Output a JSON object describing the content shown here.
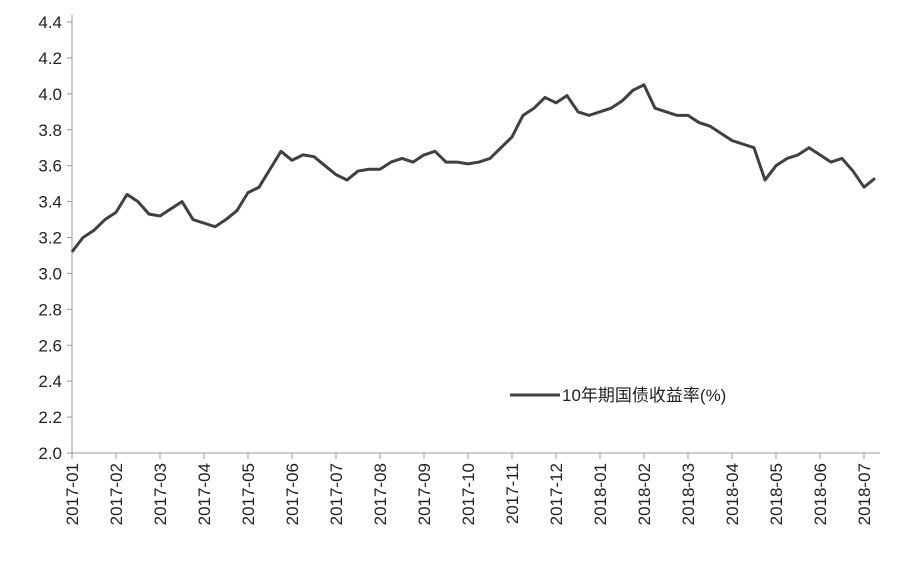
{
  "chart_data": {
    "type": "line",
    "categories": [
      "2017-01",
      null,
      null,
      null,
      "2017-02",
      null,
      null,
      null,
      "2017-03",
      null,
      null,
      null,
      "2017-04",
      null,
      null,
      null,
      "2017-05",
      null,
      null,
      null,
      "2017-06",
      null,
      null,
      null,
      "2017-07",
      null,
      null,
      null,
      "2017-08",
      null,
      null,
      null,
      "2017-09",
      null,
      null,
      null,
      "2017-10",
      null,
      null,
      null,
      "2017-11",
      null,
      null,
      null,
      "2017-12",
      null,
      null,
      null,
      "2018-01",
      null,
      null,
      null,
      "2018-02",
      null,
      null,
      null,
      "2018-03",
      null,
      null,
      null,
      "2018-04",
      null,
      null,
      null,
      "2018-05",
      null,
      null,
      null,
      "2018-06",
      null,
      null,
      null,
      "2018-07",
      null
    ],
    "series": [
      {
        "name": "10年期国债收益率(%)",
        "color": "#404040",
        "values": [
          3.12,
          3.2,
          3.24,
          3.3,
          3.34,
          3.44,
          3.4,
          3.33,
          3.32,
          3.36,
          3.4,
          3.3,
          3.28,
          3.26,
          3.3,
          3.35,
          3.45,
          3.48,
          3.58,
          3.68,
          3.63,
          3.66,
          3.65,
          3.6,
          3.55,
          3.52,
          3.57,
          3.58,
          3.58,
          3.62,
          3.64,
          3.62,
          3.66,
          3.68,
          3.62,
          3.62,
          3.61,
          3.62,
          3.64,
          3.7,
          3.76,
          3.88,
          3.92,
          3.98,
          3.95,
          3.99,
          3.9,
          3.88,
          3.9,
          3.92,
          3.96,
          4.02,
          4.05,
          3.92,
          3.9,
          3.88,
          3.88,
          3.84,
          3.82,
          3.78,
          3.74,
          3.72,
          3.7,
          3.52,
          3.6,
          3.64,
          3.66,
          3.7,
          3.66,
          3.62,
          3.64,
          3.57,
          3.48,
          3.53
        ]
      }
    ],
    "ylim": [
      2.0,
      4.4
    ],
    "yticks": [
      {
        "value": 2.0,
        "label": "2.0"
      },
      2.2,
      2.4,
      2.6,
      2.8,
      {
        "value": 3.0,
        "label": "3.0"
      },
      3.2,
      3.4,
      3.6,
      3.8,
      {
        "value": 4.0,
        "label": "4.0"
      },
      4.2,
      4.4
    ],
    "grid": false,
    "legend": "lower right"
  }
}
